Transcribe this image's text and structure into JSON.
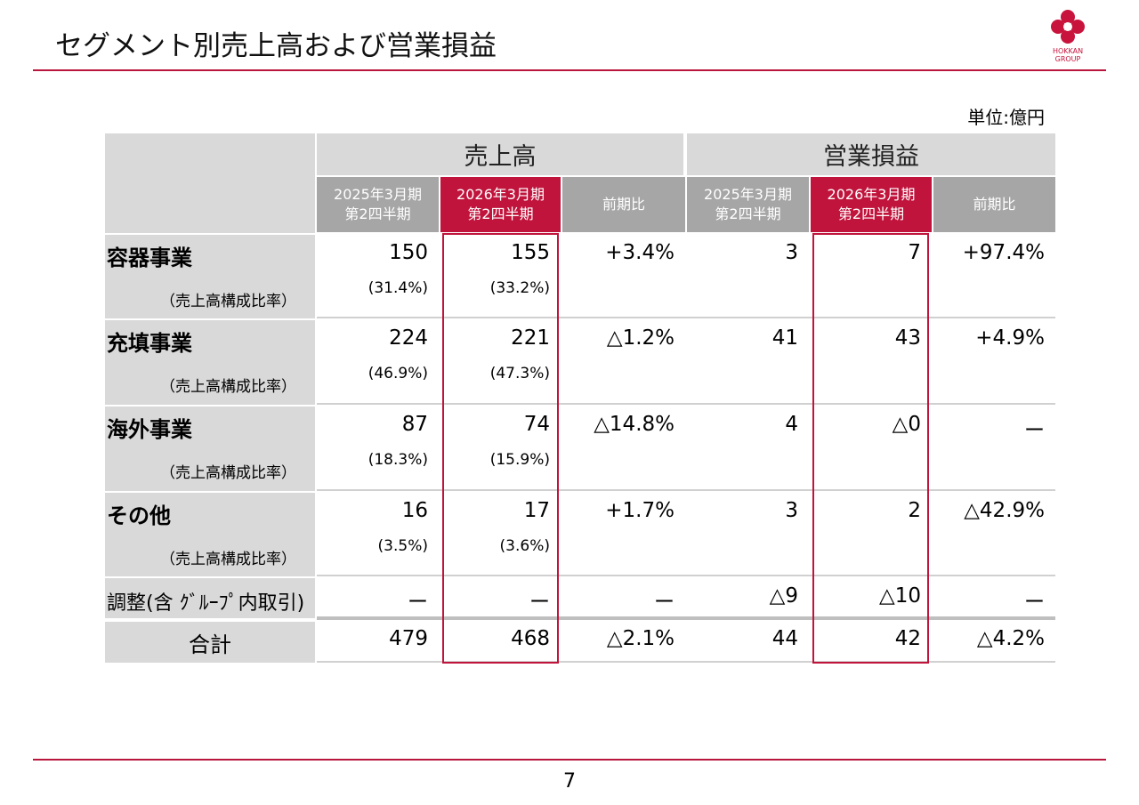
{
  "header": {
    "title": "セグメント別売上高および営業損益",
    "logo_text": [
      "HOKKAN",
      "GROUP"
    ]
  },
  "unit": "単位:億円",
  "table": {
    "corner": "",
    "groups": [
      "売上高",
      "営業損益"
    ],
    "columns": [
      [
        "2025年3月期",
        "第2四半期"
      ],
      [
        "2026年3月期",
        "第2四半期"
      ],
      [
        "前期比"
      ],
      [
        "2025年3月期",
        "第2四半期"
      ],
      [
        "2026年3月期",
        "第2四半期"
      ],
      [
        "前期比"
      ]
    ],
    "rows": [
      {
        "label": "容器事業",
        "sublabel": "（売上高構成比率）",
        "values": [
          "150",
          "155",
          "+3.4%",
          "3",
          "7",
          "+97.4%"
        ],
        "ratios": [
          "(31.4%)",
          "(33.2%)"
        ]
      },
      {
        "label": "充填事業",
        "sublabel": "（売上高構成比率）",
        "values": [
          "224",
          "221",
          "△1.2%",
          "41",
          "43",
          "+4.9%"
        ],
        "ratios": [
          "(46.9%)",
          "(47.3%)"
        ]
      },
      {
        "label": "海外事業",
        "sublabel": "（売上高構成比率）",
        "values": [
          "87",
          "74",
          "△14.8%",
          "4",
          "△0",
          "ー"
        ],
        "ratios": [
          "(18.3%)",
          "(15.9%)"
        ]
      },
      {
        "label": "その他",
        "sublabel": "（売上高構成比率）",
        "values": [
          "16",
          "17",
          "+1.7%",
          "3",
          "2",
          "△42.9%"
        ],
        "ratios": [
          "(3.5%)",
          "(3.6%)"
        ]
      },
      {
        "label": "調整(含 ｸﾞﾙｰﾌﾟ内取引)",
        "values": [
          "ー",
          "ー",
          "ー",
          "△9",
          "△10",
          "ー"
        ]
      },
      {
        "label": "合計",
        "values": [
          "479",
          "468",
          "△2.1%",
          "44",
          "42",
          "△4.2%"
        ]
      }
    ]
  },
  "page_number": "7"
}
